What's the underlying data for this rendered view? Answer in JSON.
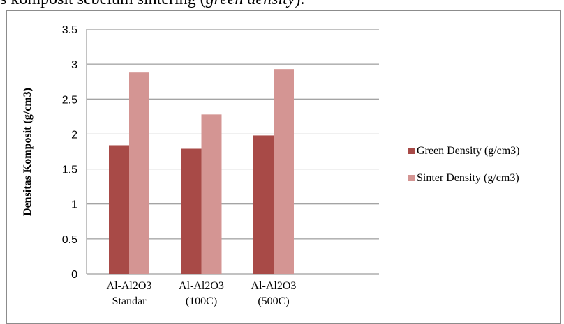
{
  "caption": {
    "text": "s komposit sebelum sintering (",
    "italic": "green density",
    "end": ")."
  },
  "chart_data": {
    "type": "bar",
    "categories": [
      [
        "Al-Al2O3",
        "Standar"
      ],
      [
        "Al-Al2O3",
        "(100C)"
      ],
      [
        "Al-Al2O3",
        "(500C)"
      ]
    ],
    "series": [
      {
        "name": "Green Density (g/cm3)",
        "color": "#a84a47",
        "values": [
          1.84,
          1.79,
          1.98
        ]
      },
      {
        "name": "Sinter Density (g/cm3)",
        "color": "#d49593",
        "values": [
          2.88,
          2.28,
          2.93
        ]
      }
    ],
    "xlabel": "",
    "ylabel": "Densitas Komposit (g/cm3)",
    "ylim": [
      0,
      3.5
    ],
    "yticks": [
      "0",
      "0.5",
      "1",
      "1.5",
      "2",
      "2.5",
      "3",
      "3.5"
    ],
    "grid": true,
    "legend": "right"
  }
}
